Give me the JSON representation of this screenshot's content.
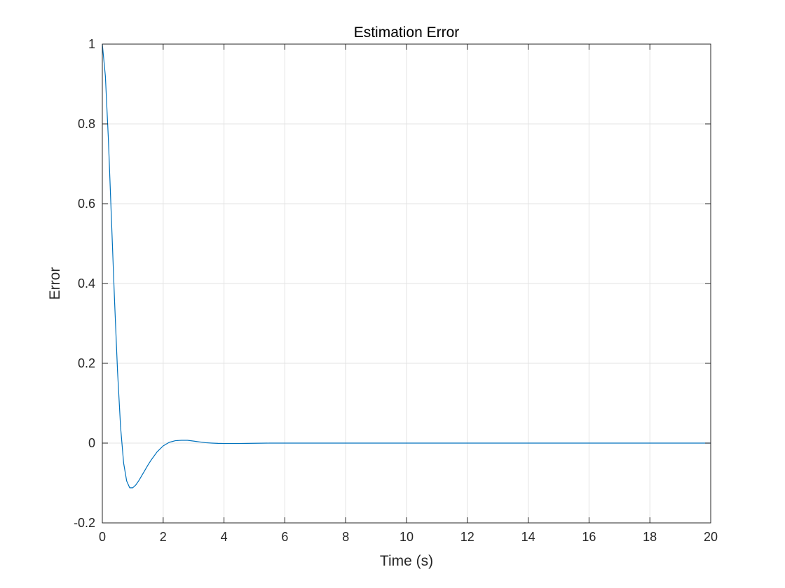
{
  "chart_data": {
    "type": "line",
    "title": "Estimation Error",
    "xlabel": "Time (s)",
    "ylabel": "Error",
    "xlim": [
      0,
      20
    ],
    "ylim": [
      -0.2,
      1
    ],
    "xticks": [
      0,
      2,
      4,
      6,
      8,
      10,
      12,
      14,
      16,
      18,
      20
    ],
    "xtick_labels": [
      "0",
      "2",
      "4",
      "6",
      "8",
      "10",
      "12",
      "14",
      "16",
      "18",
      "20"
    ],
    "yticks": [
      -0.2,
      0,
      0.2,
      0.4,
      0.6,
      0.8,
      1
    ],
    "ytick_labels": [
      "-0.2",
      "0",
      "0.2",
      "0.4",
      "0.6",
      "0.8",
      "1"
    ],
    "grid": true,
    "series": [
      {
        "color": "#0072BD",
        "x": [
          0,
          0.1,
          0.2,
          0.3,
          0.4,
          0.5,
          0.6,
          0.7,
          0.8,
          0.9,
          1.0,
          1.1,
          1.2,
          1.3,
          1.4,
          1.5,
          1.6,
          1.8,
          2.0,
          2.2,
          2.4,
          2.6,
          2.8,
          3.0,
          3.2,
          3.4,
          3.6,
          3.8,
          4.0,
          4.5,
          5.0,
          5.5,
          6.0,
          7.0,
          8.0,
          10.0,
          12.0,
          14.0,
          16.0,
          18.0,
          20.0
        ],
        "y": [
          1.0,
          0.92,
          0.76,
          0.56,
          0.36,
          0.18,
          0.04,
          -0.05,
          -0.095,
          -0.112,
          -0.112,
          -0.105,
          -0.094,
          -0.081,
          -0.068,
          -0.055,
          -0.043,
          -0.022,
          -0.007,
          0.002,
          0.006,
          0.007,
          0.007,
          0.005,
          0.003,
          0.001,
          0.0,
          -0.0007,
          -0.001,
          -0.001,
          -0.0005,
          0.0,
          0.0,
          0.0,
          0.0,
          0.0,
          0.0,
          0.0,
          0.0,
          0.0,
          0.0
        ]
      }
    ]
  }
}
